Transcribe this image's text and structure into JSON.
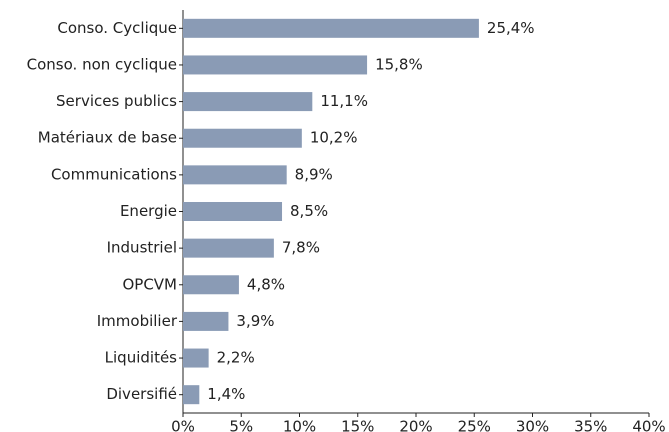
{
  "chart_data": {
    "type": "bar",
    "orientation": "horizontal",
    "categories": [
      "Conso. Cyclique",
      "Conso. non cyclique",
      "Services publics",
      "Matériaux de base",
      "Communications",
      "Energie",
      "Industriel",
      "OPCVM",
      "Immobilier",
      "Liquidités",
      "Diversifié"
    ],
    "values": [
      25.4,
      15.8,
      11.1,
      10.2,
      8.9,
      8.5,
      7.8,
      4.8,
      3.9,
      2.2,
      1.4
    ],
    "value_labels": [
      "25,4%",
      "15,8%",
      "11,1%",
      "10,2%",
      "8,9%",
      "8,5%",
      "7,8%",
      "4,8%",
      "3,9%",
      "2,2%",
      "1,4%"
    ],
    "color": "#8a9bb5",
    "xlim": [
      0,
      40
    ],
    "xticks": [
      {
        "value": 0,
        "label": "0%"
      },
      {
        "value": 5,
        "label": "5%"
      },
      {
        "value": 10,
        "label": "10%"
      },
      {
        "value": 15,
        "label": "15%"
      },
      {
        "value": 20,
        "label": "20%"
      },
      {
        "value": 25,
        "label": "25%"
      },
      {
        "value": 30,
        "label": "30%"
      },
      {
        "value": 35,
        "label": "35%"
      },
      {
        "value": 40,
        "label": "40%"
      }
    ]
  }
}
